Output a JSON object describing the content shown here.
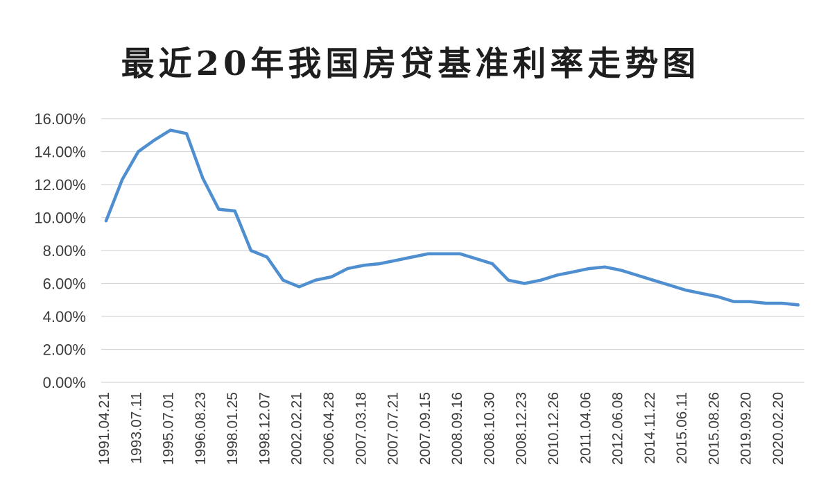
{
  "chart_data": {
    "type": "line",
    "title": "最近20年我国房贷基准利率走势图",
    "xlabel": "",
    "ylabel": "",
    "ylim": [
      0,
      16
    ],
    "yticks": [
      "0.00%",
      "2.00%",
      "4.00%",
      "6.00%",
      "8.00%",
      "10.00%",
      "12.00%",
      "14.00%",
      "16.00%"
    ],
    "grid": true,
    "line_color": "#4f8fd0",
    "x_labels_shown": [
      "1991.04.21",
      "1993.07.11",
      "1995.07.01",
      "1996.08.23",
      "1998.01.25",
      "1998.12.07",
      "2002.02.21",
      "2006.04.28",
      "2007.03.18",
      "2007.07.21",
      "2007.09.15",
      "2008.09.16",
      "2008.10.30",
      "2008.12.23",
      "2010.12.26",
      "2011.04.06",
      "2012.06.08",
      "2014.11.22",
      "2015.06.11",
      "2015.08.26",
      "2019.09.20",
      "2020.02.20"
    ],
    "series": [
      {
        "values": [
          9.8,
          12.3,
          14.0,
          14.7,
          15.3,
          15.1,
          12.4,
          10.5,
          10.4,
          8.0,
          7.6,
          6.2,
          5.8,
          6.2,
          6.4,
          6.9,
          7.1,
          7.2,
          7.4,
          7.6,
          7.8,
          7.8,
          7.8,
          7.5,
          7.2,
          6.2,
          6.0,
          6.2,
          6.5,
          6.7,
          6.9,
          7.0,
          6.8,
          6.5,
          6.2,
          5.9,
          5.6,
          5.4,
          5.2,
          4.9,
          4.9,
          4.8,
          4.8,
          4.7
        ]
      }
    ]
  }
}
